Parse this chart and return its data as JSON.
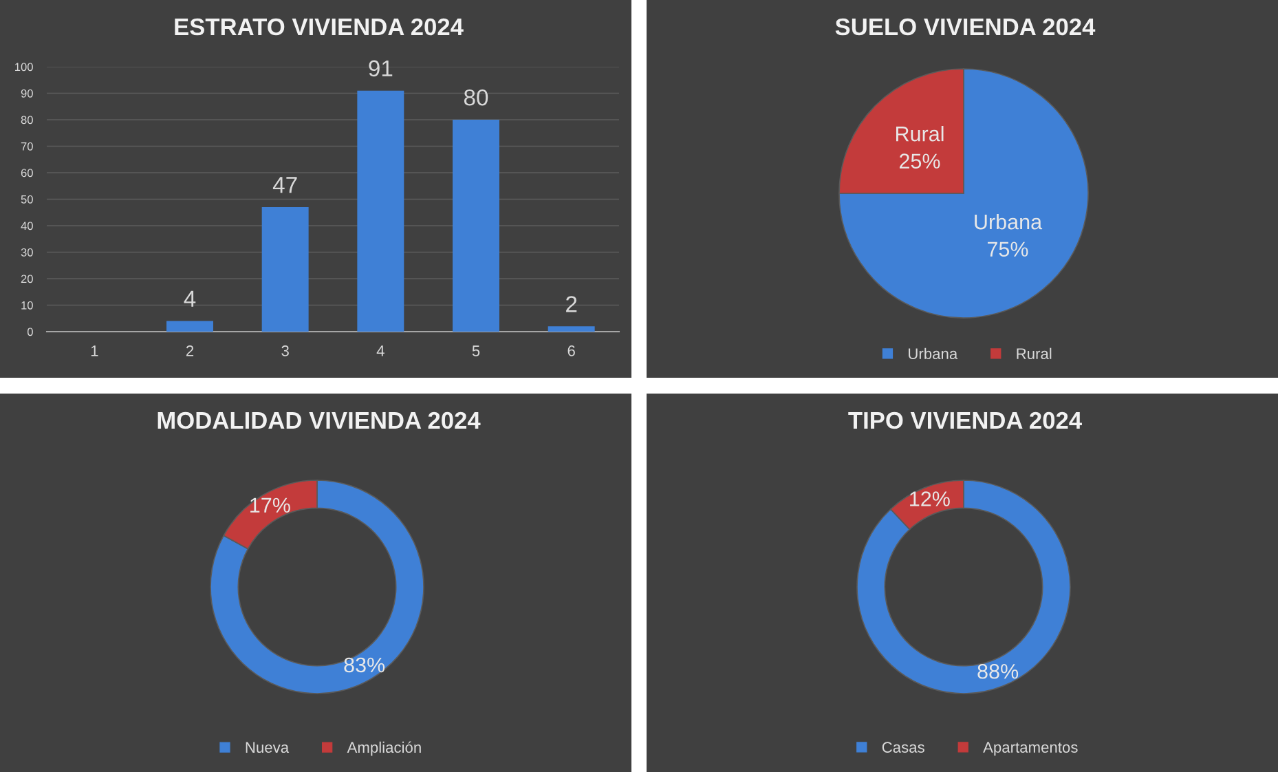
{
  "chart_data": [
    {
      "type": "bar",
      "title": "ESTRATO VIVIENDA 2024",
      "categories": [
        "1",
        "2",
        "3",
        "4",
        "5",
        "6"
      ],
      "values": [
        0,
        4,
        47,
        91,
        80,
        2
      ],
      "value_labels": [
        null,
        "4",
        "47",
        "91",
        "80",
        "2"
      ],
      "color": "#3f80d6",
      "ylim": [
        0,
        100
      ],
      "yticks": [
        0,
        10,
        20,
        30,
        40,
        50,
        60,
        70,
        80,
        90,
        100
      ],
      "grid": "y"
    },
    {
      "type": "pie",
      "title": "SUELO VIVIENDA 2024",
      "categories": [
        "Urbana",
        "Rural"
      ],
      "values": [
        75,
        25
      ],
      "colors": [
        "#3f80d6",
        "#c33b3b"
      ],
      "value_labels": [
        "Urbana\n75%",
        "Rural\n25%"
      ],
      "legend": "bottom"
    },
    {
      "type": "donut",
      "title": "MODALIDAD VIVIENDA 2024",
      "categories": [
        "Nueva",
        "Ampliación"
      ],
      "values": [
        83,
        17
      ],
      "colors": [
        "#3f80d6",
        "#c33b3b"
      ],
      "value_labels": [
        "83%",
        "17%"
      ],
      "legend": "bottom"
    },
    {
      "type": "donut",
      "title": "TIPO VIVIENDA 2024",
      "categories": [
        "Casas",
        "Apartamentos"
      ],
      "values": [
        88,
        12
      ],
      "colors": [
        "#3f80d6",
        "#c33b3b"
      ],
      "value_labels": [
        "88%",
        "12%"
      ],
      "legend": "bottom"
    }
  ]
}
